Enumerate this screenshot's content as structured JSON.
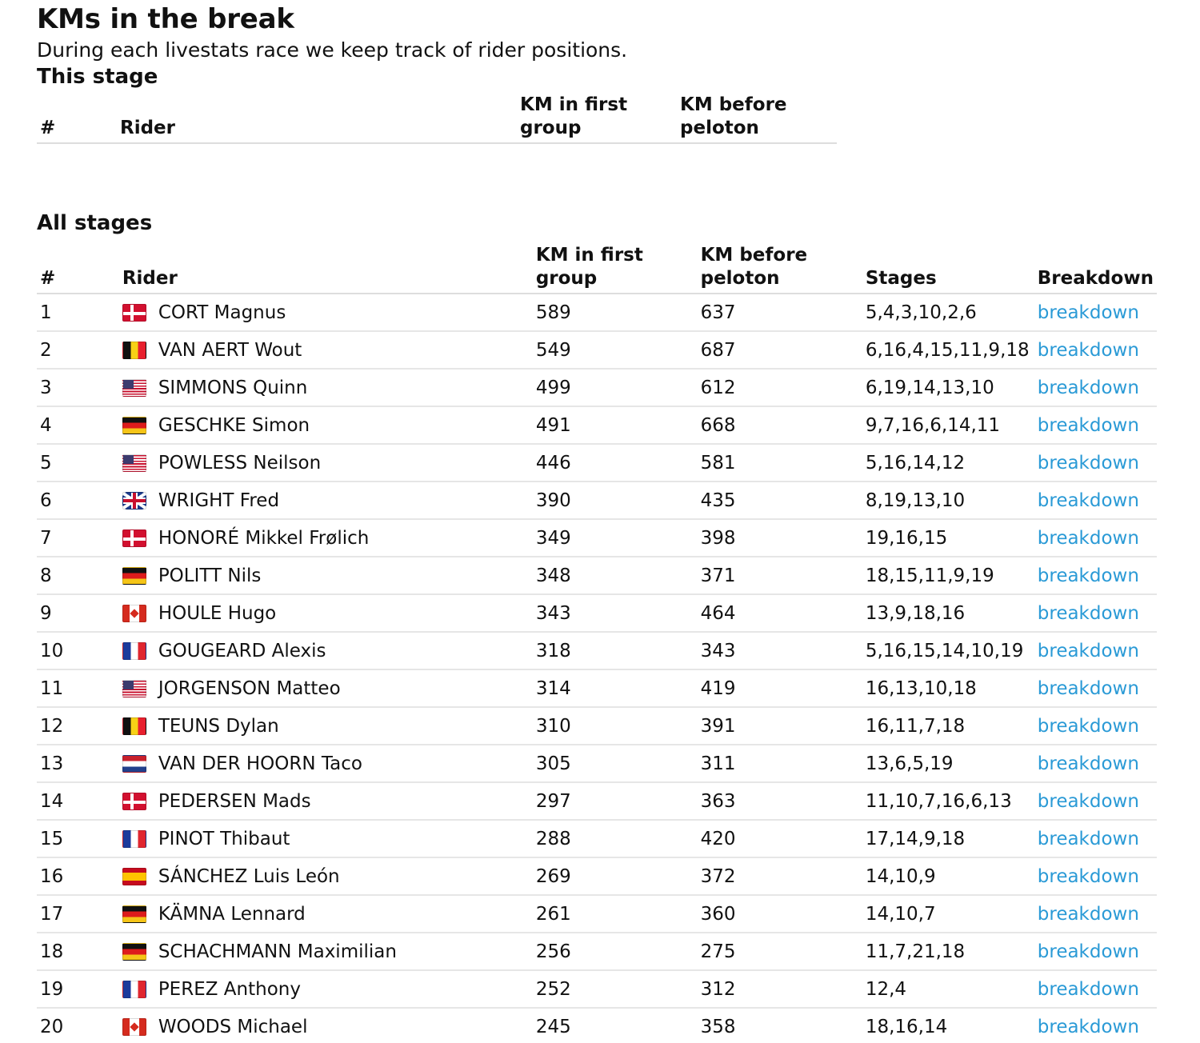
{
  "page": {
    "title": "KMs in the break",
    "intro": "During each livestats race we keep track of rider positions."
  },
  "this_stage": {
    "heading": "This stage",
    "columns": {
      "num": "#",
      "rider": "Rider",
      "km_first_group": "KM in first group",
      "km_before_peloton": "KM before peloton"
    }
  },
  "all_stages": {
    "heading": "All stages",
    "columns": {
      "num": "#",
      "rider": "Rider",
      "km_first_group": "KM in first group",
      "km_before_peloton": "KM before peloton",
      "stages": "Stages",
      "breakdown": "Breakdown"
    },
    "rows": [
      {
        "num": "1",
        "flag": "dk",
        "rider": "CORT Magnus",
        "km_first": "589",
        "km_before": "637",
        "stages": "5,4,3,10,2,6",
        "link": "breakdown"
      },
      {
        "num": "2",
        "flag": "be",
        "rider": "VAN AERT Wout",
        "km_first": "549",
        "km_before": "687",
        "stages": "6,16,4,15,11,9,18",
        "link": "breakdown"
      },
      {
        "num": "3",
        "flag": "us",
        "rider": "SIMMONS Quinn",
        "km_first": "499",
        "km_before": "612",
        "stages": "6,19,14,13,10",
        "link": "breakdown"
      },
      {
        "num": "4",
        "flag": "de",
        "rider": "GESCHKE Simon",
        "km_first": "491",
        "km_before": "668",
        "stages": "9,7,16,6,14,11",
        "link": "breakdown"
      },
      {
        "num": "5",
        "flag": "us",
        "rider": "POWLESS Neilson",
        "km_first": "446",
        "km_before": "581",
        "stages": "5,16,14,12",
        "link": "breakdown"
      },
      {
        "num": "6",
        "flag": "gb",
        "rider": "WRIGHT Fred",
        "km_first": "390",
        "km_before": "435",
        "stages": "8,19,13,10",
        "link": "breakdown"
      },
      {
        "num": "7",
        "flag": "dk",
        "rider": "HONORÉ Mikkel Frølich",
        "km_first": "349",
        "km_before": "398",
        "stages": "19,16,15",
        "link": "breakdown"
      },
      {
        "num": "8",
        "flag": "de",
        "rider": "POLITT Nils",
        "km_first": "348",
        "km_before": "371",
        "stages": "18,15,11,9,19",
        "link": "breakdown"
      },
      {
        "num": "9",
        "flag": "ca",
        "rider": "HOULE Hugo",
        "km_first": "343",
        "km_before": "464",
        "stages": "13,9,18,16",
        "link": "breakdown"
      },
      {
        "num": "10",
        "flag": "fr",
        "rider": "GOUGEARD Alexis",
        "km_first": "318",
        "km_before": "343",
        "stages": "5,16,15,14,10,19",
        "link": "breakdown"
      },
      {
        "num": "11",
        "flag": "us",
        "rider": "JORGENSON Matteo",
        "km_first": "314",
        "km_before": "419",
        "stages": "16,13,10,18",
        "link": "breakdown"
      },
      {
        "num": "12",
        "flag": "be",
        "rider": "TEUNS Dylan",
        "km_first": "310",
        "km_before": "391",
        "stages": "16,11,7,18",
        "link": "breakdown"
      },
      {
        "num": "13",
        "flag": "nl",
        "rider": "VAN DER HOORN Taco",
        "km_first": "305",
        "km_before": "311",
        "stages": "13,6,5,19",
        "link": "breakdown"
      },
      {
        "num": "14",
        "flag": "dk",
        "rider": "PEDERSEN Mads",
        "km_first": "297",
        "km_before": "363",
        "stages": "11,10,7,16,6,13",
        "link": "breakdown"
      },
      {
        "num": "15",
        "flag": "fr",
        "rider": "PINOT Thibaut",
        "km_first": "288",
        "km_before": "420",
        "stages": "17,14,9,18",
        "link": "breakdown"
      },
      {
        "num": "16",
        "flag": "es",
        "rider": "SÁNCHEZ Luis León",
        "km_first": "269",
        "km_before": "372",
        "stages": "14,10,9",
        "link": "breakdown"
      },
      {
        "num": "17",
        "flag": "de",
        "rider": "KÄMNA Lennard",
        "km_first": "261",
        "km_before": "360",
        "stages": "14,10,7",
        "link": "breakdown"
      },
      {
        "num": "18",
        "flag": "de",
        "rider": "SCHACHMANN Maximilian",
        "km_first": "256",
        "km_before": "275",
        "stages": "11,7,21,18",
        "link": "breakdown"
      },
      {
        "num": "19",
        "flag": "fr",
        "rider": "PEREZ Anthony",
        "km_first": "252",
        "km_before": "312",
        "stages": "12,4",
        "link": "breakdown"
      },
      {
        "num": "20",
        "flag": "ca",
        "rider": "WOODS Michael",
        "km_first": "245",
        "km_before": "358",
        "stages": "18,16,14",
        "link": "breakdown"
      }
    ]
  }
}
